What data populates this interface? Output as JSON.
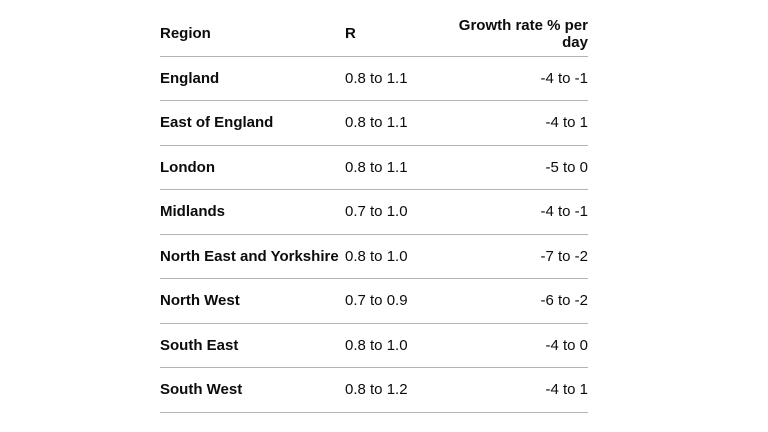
{
  "table": {
    "header": [
      "Region",
      "R",
      "Growth rate % per day"
    ],
    "rows": [
      [
        "England",
        "0.8 to 1.1",
        "-4 to -1"
      ],
      [
        "East of England",
        "0.8 to 1.1",
        "-4 to 1"
      ],
      [
        "London",
        "0.8 to 1.1",
        "-5 to 0"
      ],
      [
        "Midlands",
        "0.7 to 1.0",
        "-4 to -1"
      ],
      [
        "North East and Yorkshire",
        "0.8 to 1.0",
        "-7 to -2"
      ],
      [
        "North West",
        "0.7 to 0.9",
        "-6 to -2"
      ],
      [
        "South East",
        "0.8 to 1.0",
        "-4 to 0"
      ],
      [
        "South West",
        "0.8 to 1.2",
        "-4 to 1"
      ]
    ]
  }
}
